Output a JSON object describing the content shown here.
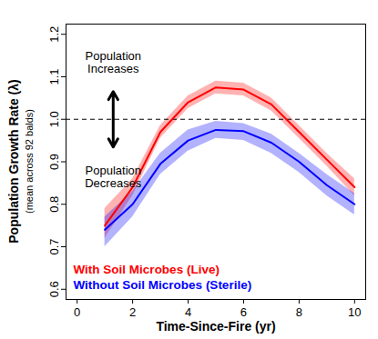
{
  "chart_data": {
    "type": "line",
    "xlabel": "Time-Since-Fire (yr)",
    "ylabel": "Population Growth Rate (λ)",
    "ylabel_note": "(mean across 92 balds)",
    "annotations": [
      "Population\nIncreases",
      "Population\nDecreases"
    ],
    "x": [
      1,
      2,
      3,
      4,
      5,
      6,
      7,
      8,
      9,
      10
    ],
    "series": [
      {
        "name": "With Soil Microbes (Live)",
        "color": "#ff0000",
        "values": [
          0.75,
          0.84,
          0.97,
          1.04,
          1.075,
          1.07,
          1.035,
          0.97,
          0.905,
          0.84
        ],
        "lower": [
          0.72,
          0.82,
          0.955,
          1.025,
          1.06,
          1.055,
          1.02,
          0.955,
          0.89,
          0.82
        ],
        "upper": [
          0.79,
          0.86,
          0.985,
          1.055,
          1.09,
          1.085,
          1.05,
          0.985,
          0.92,
          0.86
        ]
      },
      {
        "name": "Without Soil Microbes (Sterile)",
        "color": "#0000ff",
        "values": [
          0.74,
          0.8,
          0.895,
          0.95,
          0.975,
          0.972,
          0.945,
          0.9,
          0.845,
          0.8
        ],
        "lower": [
          0.7,
          0.77,
          0.87,
          0.925,
          0.955,
          0.95,
          0.92,
          0.875,
          0.82,
          0.775
        ],
        "upper": [
          0.77,
          0.83,
          0.92,
          0.975,
          0.995,
          0.99,
          0.965,
          0.92,
          0.87,
          0.825
        ]
      }
    ],
    "reference_lines": [
      {
        "y": 1,
        "line_style": "dashed"
      }
    ],
    "xlim": [
      -0.4,
      10.4
    ],
    "xticks": [
      0,
      2,
      4,
      6,
      8,
      10
    ],
    "ylim": [
      0.576,
      1.224
    ],
    "yticks": [
      0.6,
      0.7,
      0.8,
      0.9,
      {
        "value": 1,
        "label": "1.0"
      },
      1.1,
      1.2
    ],
    "legend": "bottom-left",
    "grid": false
  }
}
